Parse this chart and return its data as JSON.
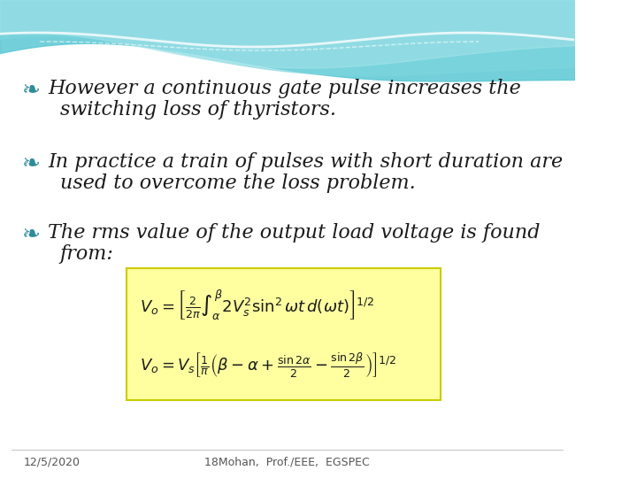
{
  "background_color": "#ffffff",
  "header_wave_colors": [
    "#5bc8d4",
    "#7dd6de",
    "#a8e4ea",
    "#c0ecf0"
  ],
  "bullet_color": "#2e8b9a",
  "text_color": "#1a1a1a",
  "bullet1_line1": "However a continuous gate pulse increases the",
  "bullet1_line2": "switching loss of thyristors.",
  "bullet2_line1": "In practice a train of pulses with short duration are",
  "bullet2_line2": "used to overcome the loss problem.",
  "bullet3_line1": "The rms value of the output load voltage is found",
  "bullet3_line2": "from:",
  "formula_box_color": "#ffffa0",
  "formula_box_edge": "#cccc00",
  "footer_date": "12/5/2020",
  "footer_text": "18Mohan,  Prof./EEE,  EGSPEC",
  "footer_color": "#555555"
}
